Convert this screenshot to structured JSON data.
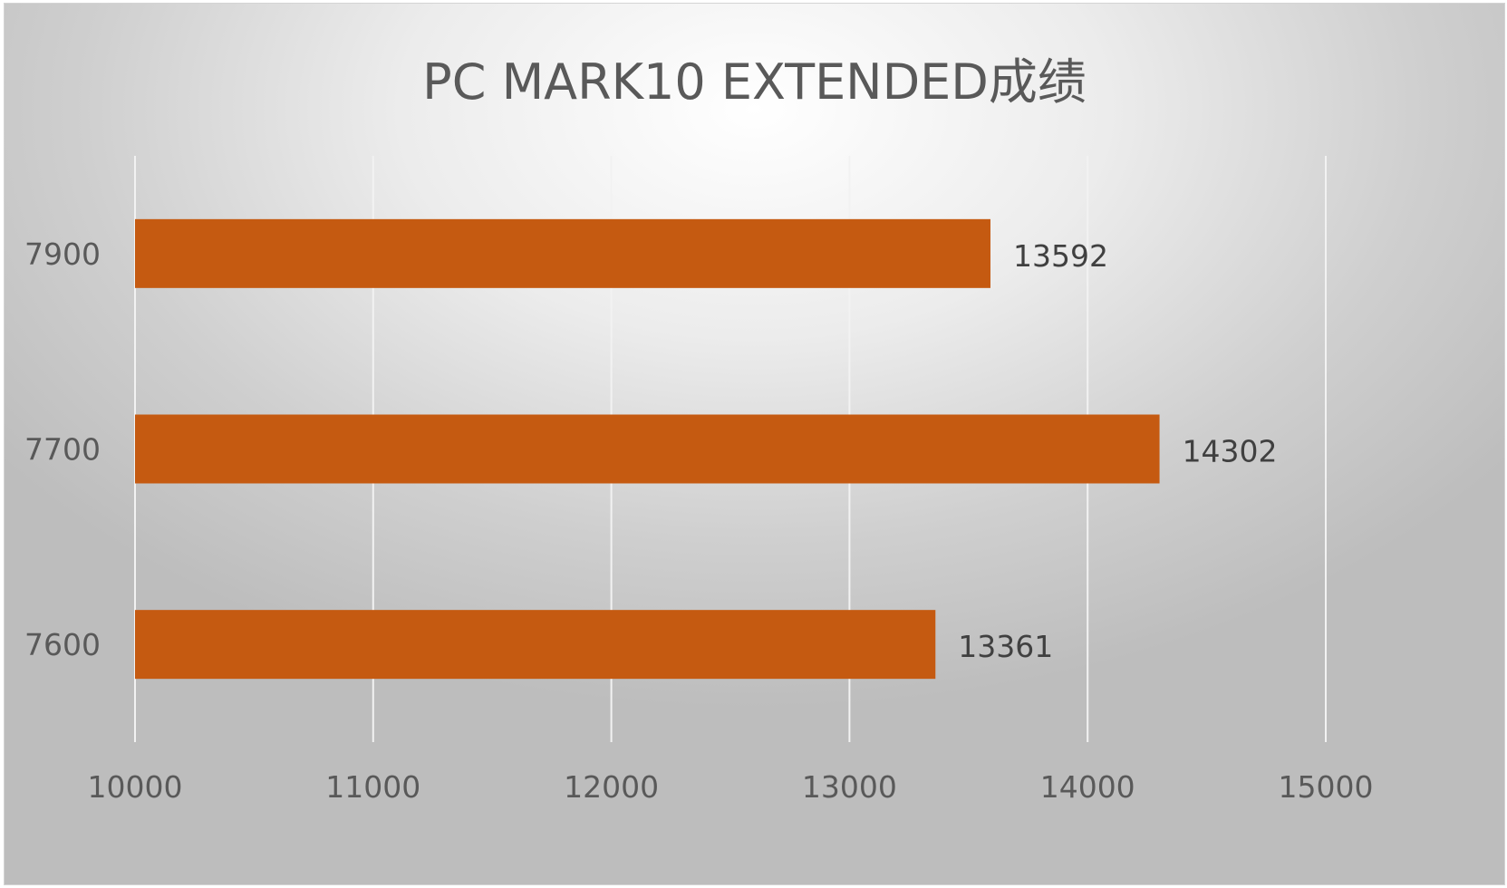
{
  "chart_data": {
    "type": "bar",
    "orientation": "horizontal",
    "title": "PC MARK10 EXTENDED成绩",
    "categories": [
      "7900",
      "7700",
      "7600"
    ],
    "values": [
      13592,
      14302,
      13361
    ],
    "data_labels": [
      "13592",
      "14302",
      "13361"
    ],
    "xlim": [
      10000,
      15000
    ],
    "x_ticks": [
      "10000",
      "11000",
      "12000",
      "13000",
      "14000",
      "15000"
    ],
    "xlabel": "",
    "ylabel": "",
    "grid": "vertical",
    "legend": "none",
    "bar_color": "#c55a11"
  }
}
